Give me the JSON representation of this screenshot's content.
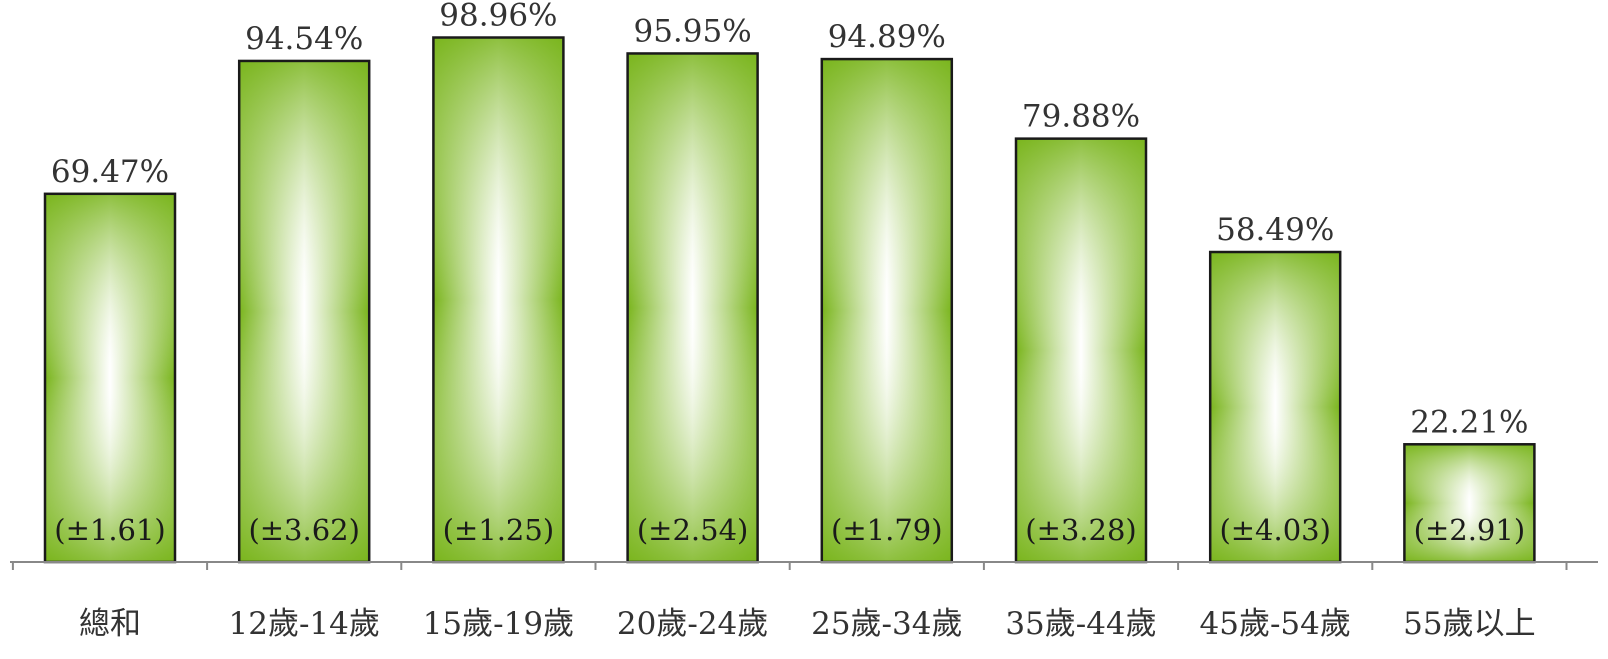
{
  "chart_data": {
    "type": "bar",
    "categories": [
      "總和",
      "12歲-14歲",
      "15歲-19歲",
      "20歲-24歲",
      "25歲-34歲",
      "35歲-44歲",
      "45歲-54歲",
      "55歲以上"
    ],
    "values": [
      69.47,
      94.54,
      98.96,
      95.95,
      94.89,
      79.88,
      58.49,
      22.21
    ],
    "value_labels": [
      "69.47%",
      "94.54%",
      "98.96%",
      "95.95%",
      "94.89%",
      "79.88%",
      "58.49%",
      "22.21%"
    ],
    "error_margins": [
      1.61,
      3.62,
      1.25,
      2.54,
      1.79,
      3.28,
      4.03,
      2.91
    ],
    "error_labels": [
      "(±1.61)",
      "(±3.62)",
      "(±1.25)",
      "(±2.54)",
      "(±1.79)",
      "(±3.28)",
      "(±4.03)",
      "(±2.91)"
    ],
    "unit": "%",
    "title": "",
    "xlabel": "",
    "ylabel": "",
    "ylim": [
      0,
      100
    ],
    "grid": false,
    "legend": "none",
    "colors": {
      "bar_edge": "#7ab51d",
      "bar_center": "#ffffff",
      "bar_outline": "#1a1a1a",
      "axis": "#888888"
    }
  }
}
